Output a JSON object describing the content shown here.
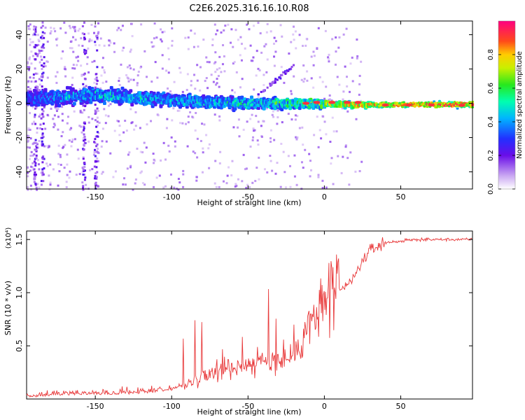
{
  "title": "C2E6.2025.316.16.10.R08",
  "chart_data": [
    {
      "type": "heatmap",
      "xlabel": "Height of straight line (km)",
      "ylabel": "Frequency (Hz)",
      "xlim": [
        -195,
        97
      ],
      "ylim": [
        -50,
        48
      ],
      "xticks": [
        -150,
        -100,
        -50,
        0,
        50
      ],
      "yticks": [
        -40,
        -20,
        0,
        20,
        40
      ],
      "colorbar": {
        "label": "Normalized spectral amplitude",
        "range": [
          0.0,
          1.0
        ],
        "ticks": [
          0.0,
          0.2,
          0.4,
          0.6,
          0.8
        ]
      },
      "ridge": {
        "x": [
          -190,
          -150,
          -100,
          -50,
          -20,
          0,
          30,
          60,
          95
        ],
        "freq": [
          3,
          5,
          2,
          0,
          0,
          0,
          -1,
          -1,
          -1
        ],
        "peak_amplitude": [
          0.3,
          0.45,
          0.4,
          0.5,
          0.6,
          0.75,
          0.85,
          0.95,
          1.0
        ]
      }
    },
    {
      "type": "line",
      "xlabel": "Height of straight line (km)",
      "ylabel": "SNR (10 * v/v)",
      "y_multiplier": "(x10⁴)",
      "xlim": [
        -195,
        97
      ],
      "ylim": [
        0,
        1.58
      ],
      "xticks": [
        -150,
        -100,
        -50,
        0,
        50
      ],
      "yticks": [
        0.5,
        1.0,
        1.5
      ],
      "series": [
        {
          "name": "SNR",
          "color": "#e8393a",
          "x": [
            -195,
            -180,
            -160,
            -140,
            -120,
            -100,
            -90,
            -80,
            -70,
            -60,
            -50,
            -40,
            -30,
            -20,
            -15,
            -10,
            -5,
            0,
            10,
            20,
            25,
            30,
            40,
            60,
            80,
            97
          ],
          "y": [
            0.01,
            0.03,
            0.04,
            0.04,
            0.05,
            0.08,
            0.14,
            0.22,
            0.28,
            0.3,
            0.33,
            0.35,
            0.37,
            0.4,
            0.55,
            0.7,
            0.8,
            0.9,
            1.0,
            1.15,
            1.3,
            1.4,
            1.47,
            1.5,
            1.5,
            1.5
          ]
        }
      ]
    }
  ]
}
